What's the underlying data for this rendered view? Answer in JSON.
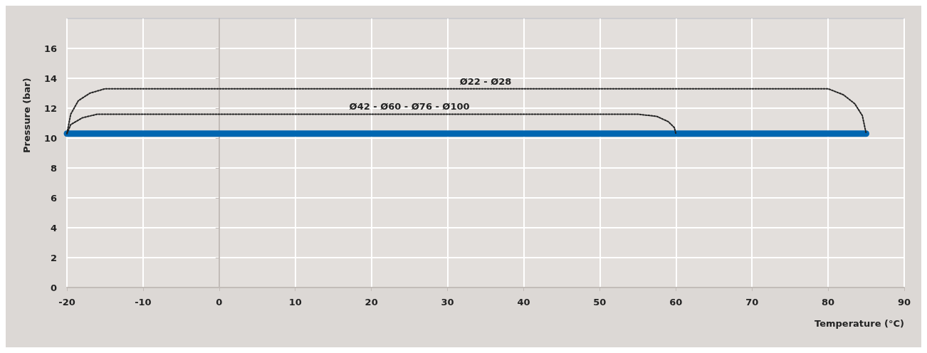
{
  "chart_data": {
    "type": "line",
    "xlabel": "Temperature (°C)",
    "ylabel": "Pressure (bar)",
    "xlim": [
      -20,
      90
    ],
    "xticks": [
      -20,
      -10,
      0,
      10,
      20,
      30,
      40,
      50,
      60,
      70,
      80,
      90
    ],
    "ylim": [
      0,
      18
    ],
    "yticks": [
      0,
      2,
      4,
      6,
      8,
      10,
      12,
      14,
      16
    ],
    "grid": true,
    "marker": "none",
    "series": [
      {
        "color": "#0066b0",
        "x": [
          -20,
          85
        ],
        "values": [
          10.3,
          10.3
        ],
        "line_style": "solid"
      },
      {
        "color": "#222222",
        "x": [
          -20,
          -19.5,
          -18.5,
          -17,
          -15,
          80,
          82,
          83.5,
          84.5,
          85
        ],
        "values": [
          10.3,
          11.6,
          12.5,
          13,
          13.3,
          13.3,
          12.9,
          12.3,
          11.5,
          10.3
        ],
        "line_style": "dotted"
      },
      {
        "color": "#222222",
        "x": [
          -20,
          -19.5,
          -18,
          -16,
          55,
          57.5,
          59,
          59.8,
          60
        ],
        "values": [
          10.3,
          10.9,
          11.35,
          11.6,
          11.6,
          11.45,
          11.1,
          10.7,
          10.3
        ],
        "line_style": "dotted"
      }
    ],
    "annotations": [
      {
        "text": "Ø22 - Ø28",
        "x": 35,
        "y": 13.3
      },
      {
        "text": "Ø42 - Ø60 - Ø76 - Ø100",
        "x": 25,
        "y": 11.6
      }
    ]
  }
}
